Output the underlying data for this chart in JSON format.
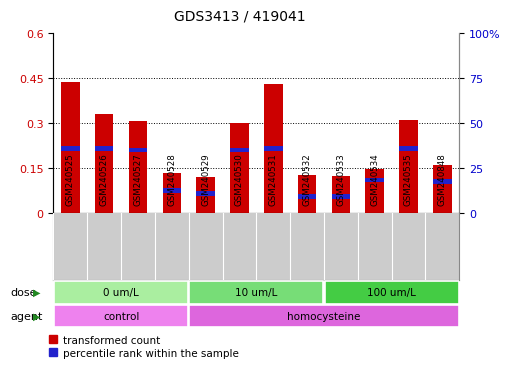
{
  "title": "GDS3413 / 419041",
  "samples": [
    "GSM240525",
    "GSM240526",
    "GSM240527",
    "GSM240528",
    "GSM240529",
    "GSM240530",
    "GSM240531",
    "GSM240532",
    "GSM240533",
    "GSM240534",
    "GSM240535",
    "GSM240848"
  ],
  "red_values": [
    0.435,
    0.33,
    0.305,
    0.133,
    0.12,
    0.3,
    0.428,
    0.128,
    0.122,
    0.148,
    0.31,
    0.16
  ],
  "blue_values": [
    0.215,
    0.215,
    0.21,
    0.075,
    0.065,
    0.21,
    0.215,
    0.055,
    0.055,
    0.11,
    0.215,
    0.105
  ],
  "ylim_left": [
    0,
    0.6
  ],
  "ylim_right": [
    0,
    100
  ],
  "yticks_left": [
    0,
    0.15,
    0.3,
    0.45,
    0.6
  ],
  "yticks_right": [
    0,
    25,
    50,
    75,
    100
  ],
  "grid_lines": [
    0.15,
    0.3,
    0.45
  ],
  "dose_groups": [
    {
      "label": "0 um/L",
      "start": 0,
      "end": 4,
      "color": "#AAEEA0"
    },
    {
      "label": "10 um/L",
      "start": 4,
      "end": 8,
      "color": "#77DD77"
    },
    {
      "label": "100 um/L",
      "start": 8,
      "end": 12,
      "color": "#44CC44"
    }
  ],
  "agent_groups": [
    {
      "label": "control",
      "start": 0,
      "end": 4,
      "color": "#EE82EE"
    },
    {
      "label": "homocysteine",
      "start": 4,
      "end": 12,
      "color": "#DD66DD"
    }
  ],
  "dose_label": "dose",
  "agent_label": "agent",
  "legend_red": "transformed count",
  "legend_blue": "percentile rank within the sample",
  "bar_color_red": "#CC0000",
  "bar_color_blue": "#2222CC",
  "bar_width": 0.55,
  "tick_color_left": "#CC0000",
  "tick_color_right": "#0000CC",
  "bg_color": "#FFFFFF",
  "plot_bg": "#FFFFFF",
  "xtick_bg": "#CCCCCC",
  "blue_bar_height": 0.016,
  "border_color": "#888888"
}
